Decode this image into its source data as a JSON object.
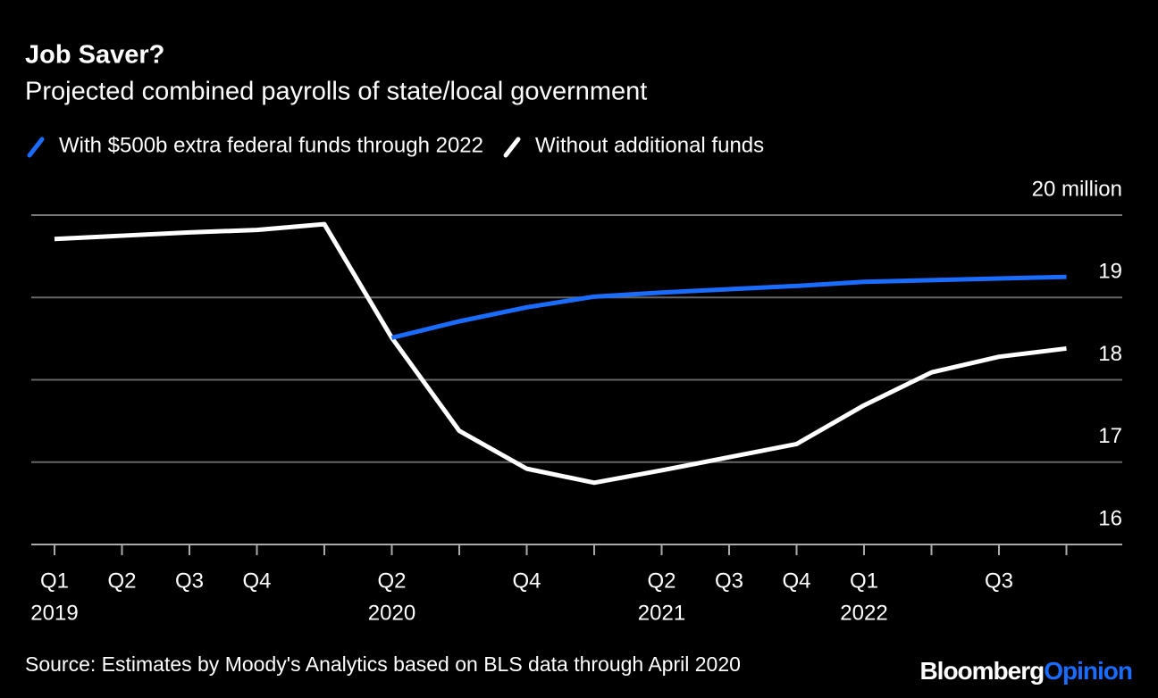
{
  "chart_data": {
    "type": "line",
    "title": "Job Saver?",
    "subtitle": "Projected combined payrolls of state/local government",
    "categories": [
      "Q1",
      "Q2",
      "Q3",
      "Q4",
      null,
      "Q2",
      null,
      "Q4",
      null,
      "Q2",
      "Q3",
      "Q4",
      "Q1",
      null,
      "Q3",
      null
    ],
    "category_years": [
      "2019",
      null,
      null,
      null,
      null,
      "2020",
      null,
      null,
      null,
      "2021",
      null,
      null,
      "2022",
      null,
      null,
      null
    ],
    "series": [
      {
        "name": "With $500b extra federal funds through 2022",
        "color": "#1a6cff",
        "values": [
          null,
          null,
          null,
          null,
          null,
          18.51,
          18.71,
          18.88,
          19.01,
          19.06,
          19.1,
          19.14,
          19.19,
          19.21,
          19.23,
          19.25
        ]
      },
      {
        "name": "Without additional funds",
        "color": "#ffffff",
        "values": [
          19.71,
          19.75,
          19.79,
          19.82,
          19.89,
          18.51,
          17.38,
          16.92,
          16.75,
          16.9,
          17.06,
          17.22,
          17.69,
          18.09,
          18.28,
          18.38
        ]
      }
    ],
    "ylim": [
      16,
      20
    ],
    "yticks": [
      16,
      17,
      18,
      19,
      {
        "value": 20,
        "label": "20 million"
      }
    ],
    "grid": true,
    "source": "Source: Estimates by Moody's Analytics based on BLS data through April 2020",
    "brand": {
      "name": "Bloomberg",
      "product": "Opinion"
    }
  }
}
